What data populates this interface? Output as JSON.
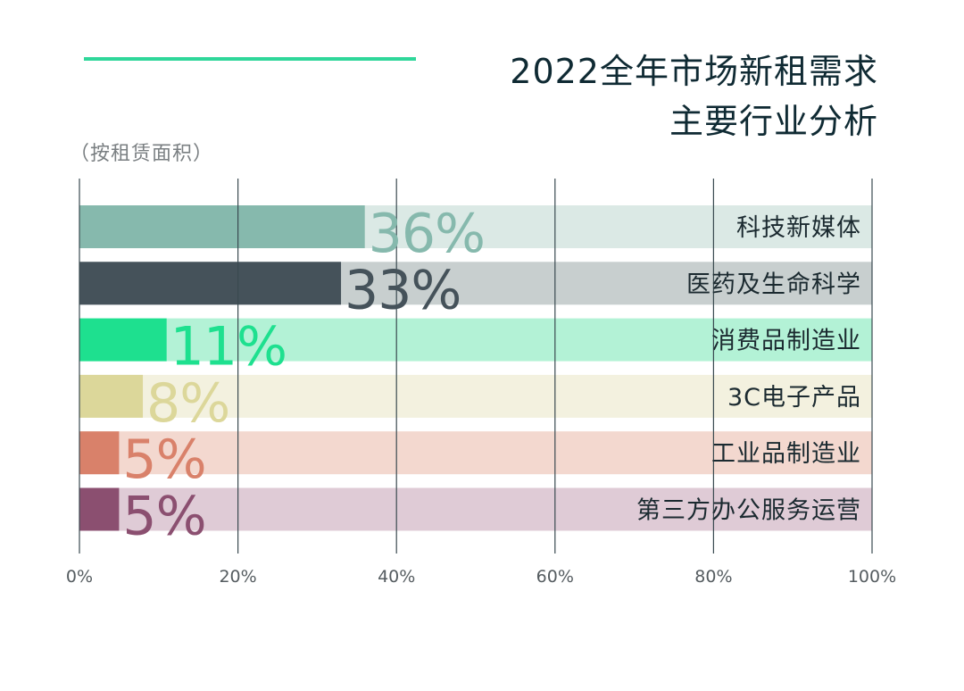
{
  "title_lines": [
    "2022全年市场新租需求",
    "主要行业分析"
  ],
  "subtitle": "（按租赁面积）",
  "colors": {
    "accent": "#2fd79a",
    "grid": "#3a4a50",
    "tick": "#555c60",
    "category_label": "#1b2a30"
  },
  "chart_data": {
    "type": "bar",
    "orientation": "horizontal",
    "unit": "%",
    "xlim": [
      0,
      100
    ],
    "ticks": [
      0,
      20,
      40,
      60,
      80,
      100
    ],
    "tick_labels": [
      "0%",
      "20%",
      "40%",
      "60%",
      "80%",
      "100%"
    ],
    "categories": [
      "科技新媒体",
      "医药及生命科学",
      "消费品制造业",
      "3C电子产品",
      "工业品制造业",
      "第三方办公服务运营"
    ],
    "values": [
      36,
      33,
      11,
      8,
      5,
      5
    ],
    "value_labels": [
      "36%",
      "33%",
      "11%",
      "8%",
      "5%",
      "5%"
    ],
    "bar_colors": [
      "#86b9ad",
      "#45525a",
      "#1ee08f",
      "#dcd79a",
      "#d9816a",
      "#8b4f70"
    ],
    "track_colors": [
      "#dbe9e5",
      "#c8cfcf",
      "#b3f2d6",
      "#f3f1df",
      "#f3d8cf",
      "#dfcbd6"
    ],
    "label_colors": [
      "#86b9ad",
      "#45525a",
      "#1ee08f",
      "#dcd79a",
      "#d9816a",
      "#8b4f70"
    ],
    "grid": true
  }
}
